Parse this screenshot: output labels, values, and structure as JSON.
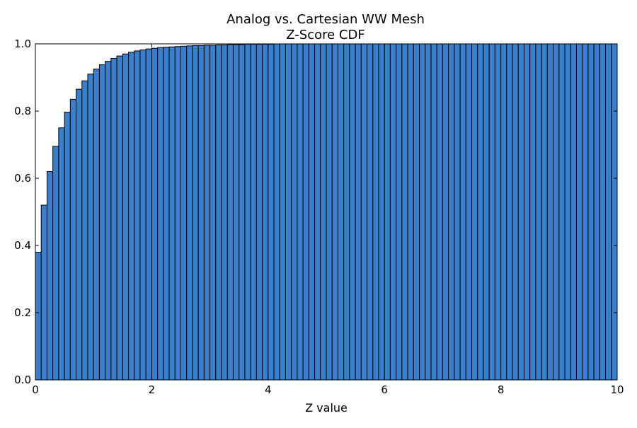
{
  "chart_data": {
    "type": "bar",
    "title": "Analog vs. Cartesian WW Mesh",
    "subtitle": "Z-Score CDF",
    "xlabel": "Z value",
    "ylabel": "",
    "xlim": [
      0,
      10
    ],
    "ylim": [
      0,
      1.0
    ],
    "grid": false,
    "legend": "none",
    "bar_color": "#3a7fcb",
    "bin_width": 0.1,
    "x_ticks": [
      {
        "value": 0,
        "label": "0"
      },
      {
        "value": 2,
        "label": "2"
      },
      {
        "value": 4,
        "label": "4"
      },
      {
        "value": 6,
        "label": "6"
      },
      {
        "value": 8,
        "label": "8"
      },
      {
        "value": 10,
        "label": "10"
      }
    ],
    "y_ticks": [
      {
        "value": 0.0,
        "label": "0.0"
      },
      {
        "value": 0.2,
        "label": "0.2"
      },
      {
        "value": 0.4,
        "label": "0.4"
      },
      {
        "value": 0.6,
        "label": "0.6"
      },
      {
        "value": 0.8,
        "label": "0.8"
      },
      {
        "value": 1.0,
        "label": "1.0"
      }
    ],
    "x": [
      0.0,
      0.1,
      0.2,
      0.3,
      0.4,
      0.5,
      0.6,
      0.7,
      0.8,
      0.9,
      1.0,
      1.1,
      1.2,
      1.3,
      1.4,
      1.5,
      1.6,
      1.7,
      1.8,
      1.9,
      2.0,
      2.1,
      2.2,
      2.3,
      2.4,
      2.5,
      2.6,
      2.7,
      2.8,
      2.9,
      3.0,
      3.1,
      3.2,
      3.3,
      3.4,
      3.5,
      3.6,
      3.7,
      3.8,
      3.9,
      4.0,
      4.1,
      4.2,
      4.3,
      4.4,
      4.5,
      4.6,
      4.7,
      4.8,
      4.9,
      5.0,
      5.1,
      5.2,
      5.3,
      5.4,
      5.5,
      5.6,
      5.7,
      5.8,
      5.9,
      6.0,
      6.1,
      6.2,
      6.3,
      6.4,
      6.5,
      6.6,
      6.7,
      6.8,
      6.9,
      7.0,
      7.1,
      7.2,
      7.3,
      7.4,
      7.5,
      7.6,
      7.7,
      7.8,
      7.9,
      8.0,
      8.1,
      8.2,
      8.3,
      8.4,
      8.5,
      8.6,
      8.7,
      8.8,
      8.9,
      9.0,
      9.1,
      9.2,
      9.3,
      9.4,
      9.5,
      9.6,
      9.7,
      9.8,
      9.9
    ],
    "values": [
      0.38,
      0.52,
      0.62,
      0.695,
      0.75,
      0.797,
      0.835,
      0.865,
      0.89,
      0.91,
      0.925,
      0.938,
      0.948,
      0.957,
      0.964,
      0.97,
      0.975,
      0.979,
      0.982,
      0.985,
      0.987,
      0.989,
      0.99,
      0.991,
      0.992,
      0.993,
      0.994,
      0.995,
      0.995,
      0.996,
      0.996,
      0.997,
      0.997,
      0.998,
      0.998,
      0.998,
      0.999,
      0.999,
      0.999,
      0.999,
      0.999,
      1.0,
      1.0,
      1.0,
      1.0,
      1.0,
      1.0,
      1.0,
      1.0,
      1.0,
      1.0,
      1.0,
      1.0,
      1.0,
      1.0,
      1.0,
      1.0,
      1.0,
      1.0,
      1.0,
      1.0,
      1.0,
      1.0,
      1.0,
      1.0,
      1.0,
      1.0,
      1.0,
      1.0,
      1.0,
      1.0,
      1.0,
      1.0,
      1.0,
      1.0,
      1.0,
      1.0,
      1.0,
      1.0,
      1.0,
      1.0,
      1.0,
      1.0,
      1.0,
      1.0,
      1.0,
      1.0,
      1.0,
      1.0,
      1.0,
      1.0,
      1.0,
      1.0,
      1.0,
      1.0,
      1.0,
      1.0,
      1.0,
      1.0,
      1.0
    ]
  }
}
